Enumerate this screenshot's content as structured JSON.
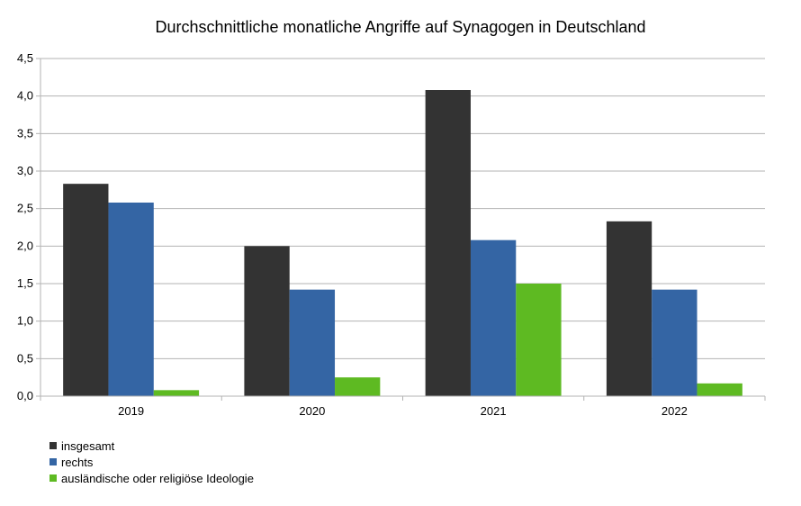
{
  "chart_data": {
    "type": "bar",
    "title": "Durchschnittliche monatliche Angriffe auf Synagogen in Deutschland",
    "categories": [
      "2019",
      "2020",
      "2021",
      "2022"
    ],
    "series": [
      {
        "name": "insgesamt",
        "color": "#333333",
        "values": [
          2.83,
          2.0,
          4.08,
          2.33
        ]
      },
      {
        "name": "rechts",
        "color": "#3465a4",
        "values": [
          2.58,
          1.42,
          2.08,
          1.42
        ]
      },
      {
        "name": "ausländische oder religiöse Ideologie",
        "color": "#5eba22",
        "values": [
          0.08,
          0.25,
          1.5,
          0.17
        ]
      }
    ],
    "ylim": [
      0,
      4.5
    ],
    "yticks": [
      "0,0",
      "0,5",
      "1,0",
      "1,5",
      "2,0",
      "2,5",
      "3,0",
      "3,5",
      "4,0",
      "4,5"
    ],
    "ytick_step": 0.5,
    "grid": true,
    "legend_position": "bottom-left"
  }
}
